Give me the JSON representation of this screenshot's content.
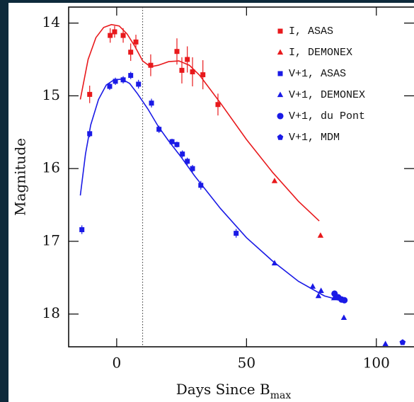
{
  "chart_data": {
    "type": "scatter",
    "xlabel": "Days Since B",
    "xlabel_sub": "max",
    "ylabel": "Magnitude",
    "xlim": [
      -18.5,
      114.5
    ],
    "ylim": [
      18.45,
      13.78
    ],
    "xticks": [
      0,
      50,
      100
    ],
    "yticks": [
      14,
      15,
      16,
      17,
      18
    ],
    "vline": 10,
    "series": [
      {
        "name": "I, ASAS",
        "color": "#e8191c",
        "marker": "square",
        "x": [
          -10.4,
          -2.5,
          -0.8,
          2.5,
          5.4,
          7.4,
          13.1,
          23.2,
          25.1,
          27.2,
          29.2,
          33.2,
          39.0
        ],
        "values": [
          14.98,
          14.17,
          14.12,
          14.17,
          14.4,
          14.26,
          14.58,
          14.39,
          14.65,
          14.5,
          14.67,
          14.71,
          15.12
        ],
        "errors": [
          0.12,
          0.1,
          0.08,
          0.1,
          0.12,
          0.1,
          0.15,
          0.18,
          0.18,
          0.18,
          0.2,
          0.2,
          0.15
        ]
      },
      {
        "name": "I, DEMONEX",
        "color": "#e8191c",
        "marker": "triangle",
        "x": [
          60.8,
          78.5
        ],
        "values": [
          16.17,
          16.92
        ]
      },
      {
        "name": "V+1, ASAS",
        "color": "#1a1ae6",
        "marker": "square",
        "x": [
          -13.4,
          -10.4,
          -2.7,
          -0.5,
          2.5,
          5.4,
          8.4,
          13.4,
          16.3,
          21.3,
          23.2,
          25.3,
          27.2,
          29.2,
          32.4,
          46.0
        ],
        "values": [
          16.84,
          15.52,
          14.87,
          14.8,
          14.78,
          14.72,
          14.84,
          15.1,
          15.46,
          15.63,
          15.67,
          15.8,
          15.9,
          16.0,
          16.23,
          16.89
        ],
        "errors": [
          0.06,
          0.05,
          0.05,
          0.05,
          0.05,
          0.05,
          0.06,
          0.06,
          0.05,
          0.04,
          0.04,
          0.05,
          0.05,
          0.05,
          0.06,
          0.06
        ]
      },
      {
        "name": "V+1, DEMONEX",
        "color": "#1a1ae6",
        "marker": "triangle",
        "x": [
          60.8,
          75.5,
          77.7,
          78.7,
          83.7,
          87.5,
          103.5
        ],
        "values": [
          17.3,
          17.62,
          17.75,
          17.68,
          17.78,
          18.05,
          18.41
        ]
      },
      {
        "name": "V+1, du Pont",
        "color": "#1a1ae6",
        "marker": "circle",
        "x": [
          83.9,
          85.3,
          86.6,
          87.7
        ],
        "values": [
          17.72,
          17.77,
          17.8,
          17.81
        ]
      },
      {
        "name": "V+1, MDM",
        "color": "#1a1ae6",
        "marker": "pentagon",
        "x": [
          110.1
        ],
        "values": [
          18.39
        ]
      }
    ],
    "curves": [
      {
        "color": "#e8191c",
        "x": [
          -14,
          -11,
          -8,
          -5,
          -2,
          1,
          4,
          7,
          10,
          13,
          16,
          20,
          24,
          28,
          32,
          40,
          50,
          60,
          70,
          78
        ],
        "values": [
          15.05,
          14.5,
          14.2,
          14.06,
          14.02,
          14.04,
          14.15,
          14.32,
          14.52,
          14.6,
          14.58,
          14.53,
          14.52,
          14.58,
          14.72,
          15.1,
          15.6,
          16.05,
          16.45,
          16.72
        ]
      },
      {
        "color": "#1a1ae6",
        "x": [
          -14,
          -12,
          -10,
          -7,
          -4,
          -1,
          2,
          5,
          8,
          12,
          16,
          20,
          25,
          30,
          40,
          50,
          60,
          70,
          80,
          87
        ],
        "values": [
          16.37,
          15.8,
          15.4,
          15.05,
          14.85,
          14.78,
          14.77,
          14.83,
          14.97,
          15.18,
          15.42,
          15.62,
          15.85,
          16.1,
          16.55,
          16.95,
          17.27,
          17.55,
          17.75,
          17.82
        ]
      }
    ]
  }
}
